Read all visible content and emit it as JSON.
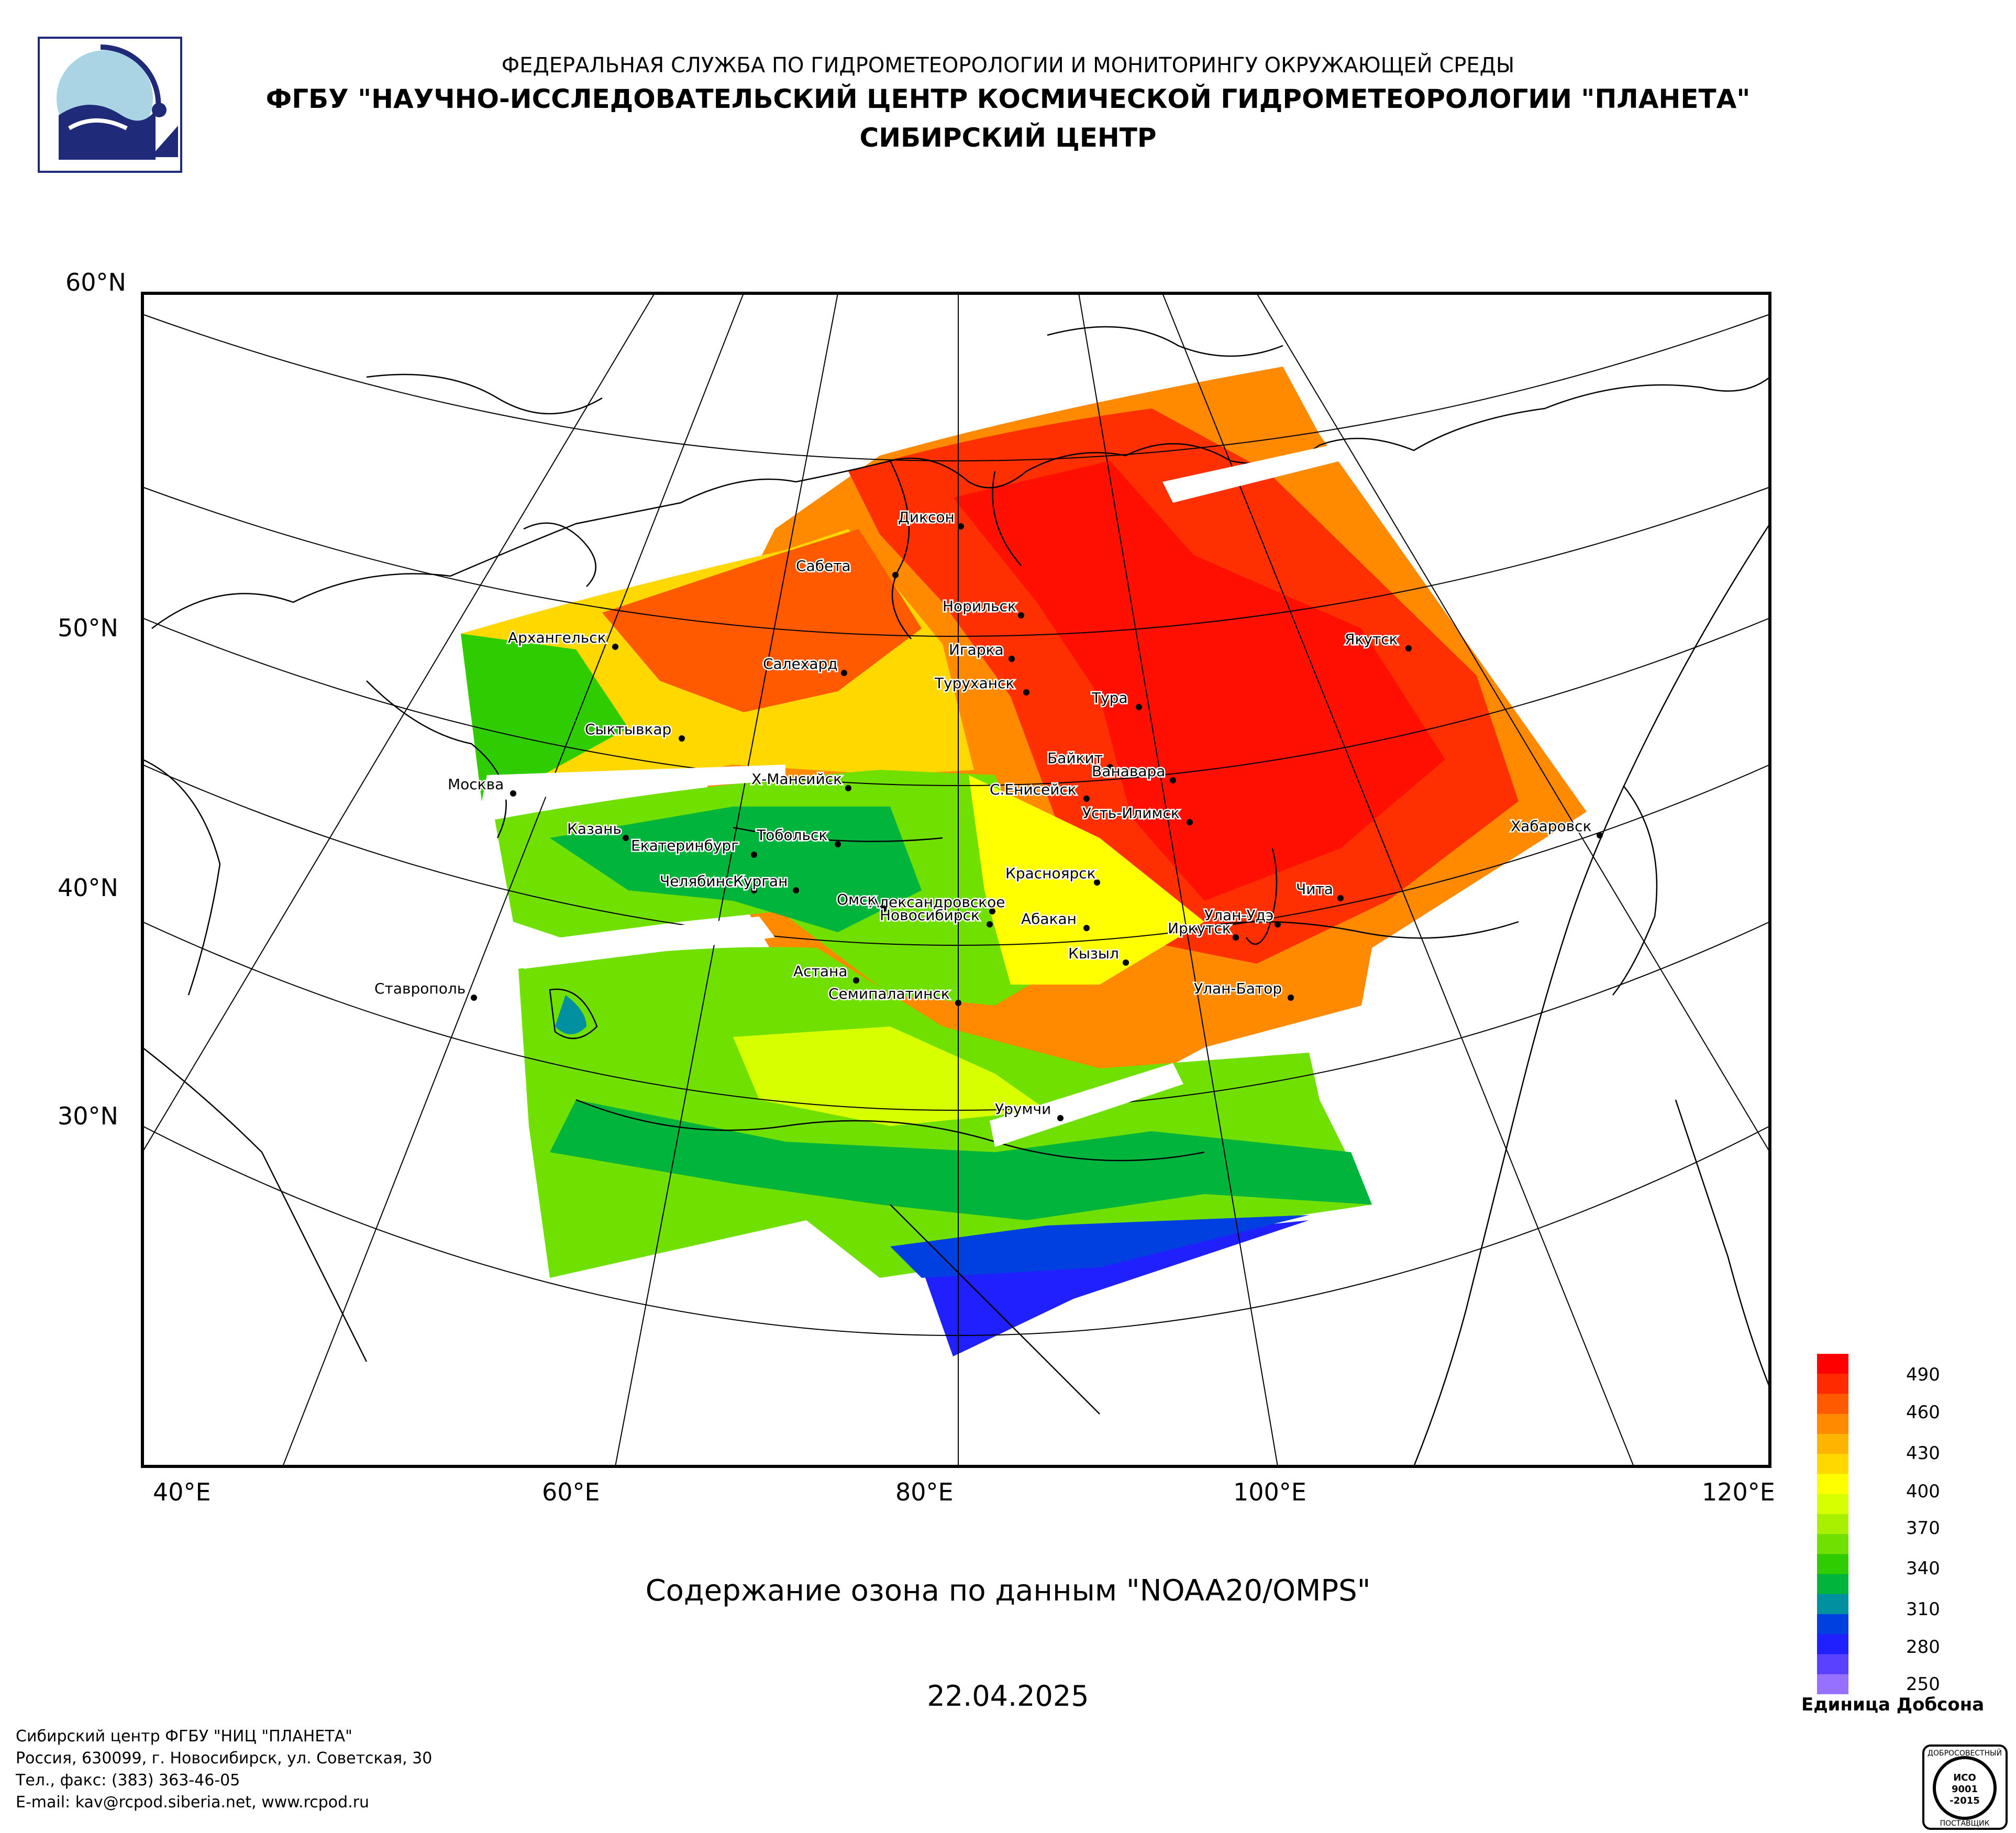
{
  "header": {
    "agency": "ФЕДЕРАЛЬНАЯ СЛУЖБА ПО ГИДРОМЕТЕОРОЛОГИИ И МОНИТОРИНГУ ОКРУЖАЮЩЕЙ СРЕДЫ",
    "institution": "ФГБУ \"НАУЧНО-ИССЛЕДОВАТЕЛЬСКИЙ ЦЕНТР КОСМИЧЕСКОЙ ГИДРОМЕТЕОРОЛОГИИ \"ПЛАНЕТА\"",
    "center": "СИБИРСКИЙ ЦЕНТР"
  },
  "map": {
    "latitude_labels": [
      "60°N",
      "50°N",
      "40°N",
      "30°N"
    ],
    "longitude_labels": [
      "40°E",
      "60°E",
      "80°E",
      "100°E",
      "120°E"
    ],
    "cities": [
      {
        "name": "Диксон"
      },
      {
        "name": "Сабета"
      },
      {
        "name": "Норильск"
      },
      {
        "name": "Игарка"
      },
      {
        "name": "Архангельск"
      },
      {
        "name": "Салехард"
      },
      {
        "name": "Туруханск"
      },
      {
        "name": "Тура"
      },
      {
        "name": "Якутск"
      },
      {
        "name": "Сыктывкар"
      },
      {
        "name": "Байкит"
      },
      {
        "name": "Ванавара"
      },
      {
        "name": "Москва"
      },
      {
        "name": "Х-Мансийск"
      },
      {
        "name": "С.Енисейск"
      },
      {
        "name": "Усть-Илимск"
      },
      {
        "name": "Хабаровск"
      },
      {
        "name": "Казань"
      },
      {
        "name": "Тобольск"
      },
      {
        "name": "Екатеринбург"
      },
      {
        "name": "Красноярск"
      },
      {
        "name": "Челябинск"
      },
      {
        "name": "Александровское"
      },
      {
        "name": "Чита"
      },
      {
        "name": "Курган"
      },
      {
        "name": "Омск"
      },
      {
        "name": "Новосибирск"
      },
      {
        "name": "Абакан"
      },
      {
        "name": "Улан-Удэ"
      },
      {
        "name": "Иркутск"
      },
      {
        "name": "Кызыл"
      },
      {
        "name": "Астана"
      },
      {
        "name": "Ставрополь"
      },
      {
        "name": "Семипалатинск"
      },
      {
        "name": "Улан-Батор"
      },
      {
        "name": "Урумчи"
      }
    ]
  },
  "legend": {
    "ticks": [
      "490",
      "460",
      "430",
      "400",
      "370",
      "340",
      "310",
      "280",
      "250"
    ],
    "unit": "Единица Добсона",
    "colors": [
      "#ff0000",
      "#ff2a00",
      "#ff5a00",
      "#ff8a00",
      "#ffb400",
      "#ffd800",
      "#ffff00",
      "#d8ff00",
      "#a8f000",
      "#70e000",
      "#2ecc00",
      "#00b43c",
      "#0090a0",
      "#0040e0",
      "#2020ff",
      "#5a40ff",
      "#9670ff"
    ]
  },
  "title": "Содержание озона по данным \"NOAA20/OMPS\"",
  "date": "22.04.2025",
  "footer": {
    "line1": "Сибирский центр ФГБУ \"НИЦ \"ПЛАНЕТА\"",
    "line2": "Россия, 630099, г. Новосибирск, ул. Советская, 30",
    "line3": "Тел., факс: (383) 363-46-05",
    "line4": "E-mail: kav@rcpod.siberia.net, www.rcpod.ru"
  },
  "stamp": {
    "top": "ДОБРОСОВЕСТНЫЙ",
    "mid1": "ИСО",
    "mid2": "9001",
    "mid3": "-2015",
    "bottom": "ПОСТАВЩИК"
  }
}
